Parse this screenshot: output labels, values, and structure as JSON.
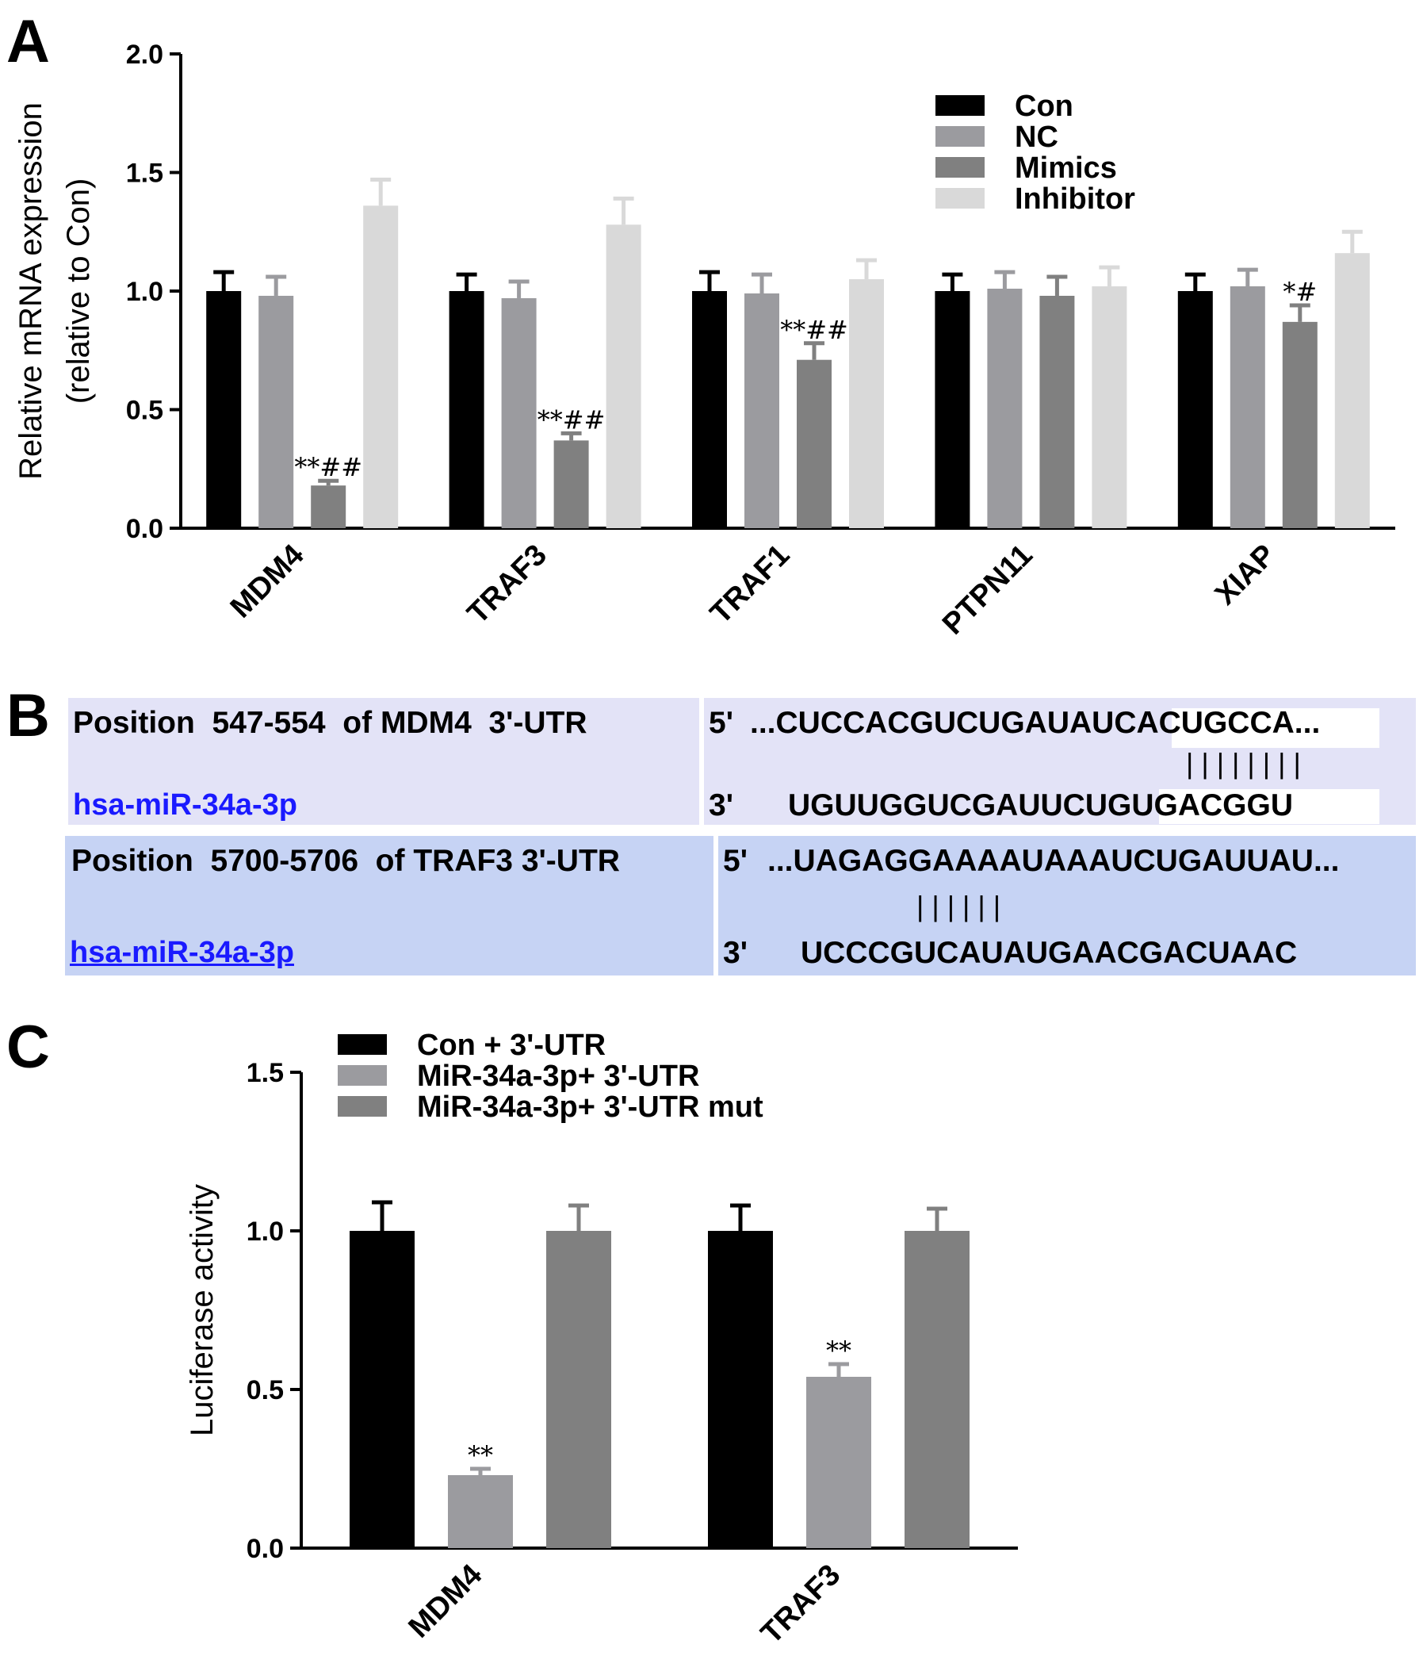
{
  "panel_labels": {
    "a": "A",
    "b": "B",
    "c": "C"
  },
  "chart_data": [
    {
      "type": "bar",
      "panel": "A",
      "ylabel": [
        "Relative mRNA expression",
        "(relative to Con)"
      ],
      "xlabel": "",
      "ylim": [
        0,
        2.0
      ],
      "yticks": [
        "0.0",
        "0.5",
        "1.0",
        "1.5",
        "2.0"
      ],
      "categories": [
        "MDM4",
        "TRAF3",
        "TRAF1",
        "PTPN11",
        "XIAP"
      ],
      "legend_position": "top-right",
      "series": [
        {
          "name": "Con",
          "color": "#000000",
          "values": [
            1.0,
            1.0,
            1.0,
            1.0,
            1.0
          ],
          "errors": [
            0.08,
            0.07,
            0.08,
            0.07,
            0.07
          ]
        },
        {
          "name": "NC",
          "color": "#9b9b9f",
          "values": [
            0.98,
            0.97,
            0.99,
            1.01,
            1.02
          ],
          "errors": [
            0.08,
            0.07,
            0.08,
            0.07,
            0.07
          ]
        },
        {
          "name": "Mimics",
          "color": "#808080",
          "values": [
            0.18,
            0.37,
            0.71,
            0.98,
            0.87
          ],
          "errors": [
            0.02,
            0.03,
            0.07,
            0.08,
            0.07
          ]
        },
        {
          "name": "Inhibitor",
          "color": "#d9d9d9",
          "values": [
            1.36,
            1.28,
            1.05,
            1.02,
            1.16
          ],
          "errors": [
            0.11,
            0.11,
            0.08,
            0.08,
            0.09
          ]
        }
      ],
      "annotations": [
        {
          "category": "MDM4",
          "series": "Mimics",
          "text": "**##"
        },
        {
          "category": "TRAF3",
          "series": "Mimics",
          "text": "**##"
        },
        {
          "category": "TRAF1",
          "series": "Mimics",
          "text": "**##"
        },
        {
          "category": "XIAP",
          "series": "Mimics",
          "text": "*#"
        }
      ]
    },
    {
      "type": "bar",
      "panel": "C",
      "ylabel": "Luciferase activity",
      "xlabel": "",
      "ylim": [
        0,
        1.5
      ],
      "yticks": [
        "0.0",
        "0.5",
        "1.0",
        "1.5"
      ],
      "categories": [
        "MDM4",
        "TRAF3"
      ],
      "legend_position": "top-left",
      "series": [
        {
          "name": "Con + 3'-UTR",
          "color": "#000000",
          "values": [
            1.0,
            1.0
          ],
          "errors": [
            0.09,
            0.08
          ]
        },
        {
          "name": "MiR-34a-3p+ 3'-UTR",
          "color": "#9b9b9f",
          "values": [
            0.23,
            0.54
          ],
          "errors": [
            0.02,
            0.04
          ]
        },
        {
          "name": "MiR-34a-3p+ 3'-UTR mut",
          "color": "#808080",
          "values": [
            1.0,
            1.0
          ],
          "errors": [
            0.08,
            0.07
          ]
        }
      ],
      "annotations": [
        {
          "category": "MDM4",
          "series": "MiR-34a-3p+ 3'-UTR",
          "text": "**"
        },
        {
          "category": "TRAF3",
          "series": "MiR-34a-3p+ 3'-UTR",
          "text": "**"
        }
      ]
    }
  ],
  "panel_b": {
    "row1": {
      "position": "Position  547-554  of MDM4  3'-UTR",
      "mirna": "hsa-miR-34a-3p",
      "five_prime": "5'",
      "target_seq": "...CUCCACGUCUGAUAUCACUGCCA...",
      "pairing": "| | | | | | | |",
      "three_prime": "3'",
      "mirna_seq": "UGUUGGUCGAUUCUGUGACGGU",
      "bg_left": "#e3e3f7",
      "bg_right": "#e3e3f7"
    },
    "row2": {
      "position": "Position  5700-5706  of TRAF3 3'-UTR",
      "mirna": "hsa-miR-34a-3p",
      "five_prime": "5'",
      "target_seq": "...UAGAGGAAAAUAAAUCUGAUUAU...",
      "pairing": "| | | | | |",
      "three_prime": "3'",
      "mirna_seq": "UCCCGUCAUAUGAACGACUAAC",
      "bg_left": "#c6d3f4",
      "bg_right": "#c6d3f4"
    }
  }
}
